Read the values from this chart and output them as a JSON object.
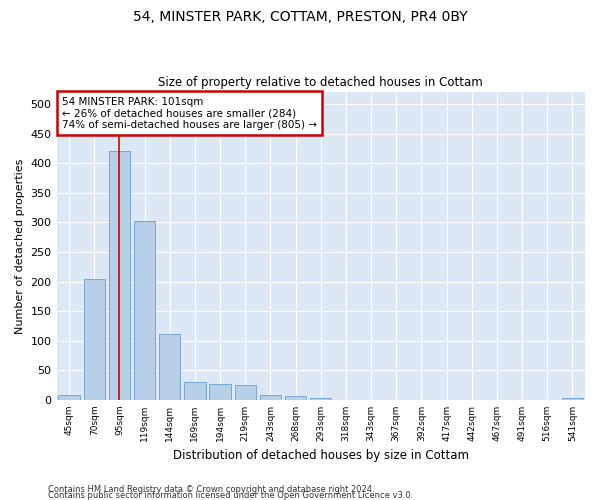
{
  "title1": "54, MINSTER PARK, COTTAM, PRESTON, PR4 0BY",
  "title2": "Size of property relative to detached houses in Cottam",
  "xlabel": "Distribution of detached houses by size in Cottam",
  "ylabel": "Number of detached properties",
  "footer1": "Contains HM Land Registry data © Crown copyright and database right 2024.",
  "footer2": "Contains public sector information licensed under the Open Government Licence v3.0.",
  "bar_color": "#b8cfe8",
  "bar_edge_color": "#6a9fd0",
  "categories": [
    "45sqm",
    "70sqm",
    "95sqm",
    "119sqm",
    "144sqm",
    "169sqm",
    "194sqm",
    "219sqm",
    "243sqm",
    "268sqm",
    "293sqm",
    "318sqm",
    "343sqm",
    "367sqm",
    "392sqm",
    "417sqm",
    "442sqm",
    "467sqm",
    "491sqm",
    "516sqm",
    "541sqm"
  ],
  "values": [
    8,
    205,
    420,
    302,
    112,
    30,
    27,
    25,
    8,
    7,
    3,
    0,
    0,
    0,
    0,
    0,
    0,
    0,
    0,
    0,
    4
  ],
  "ylim": [
    0,
    520
  ],
  "yticks": [
    0,
    50,
    100,
    150,
    200,
    250,
    300,
    350,
    400,
    450,
    500
  ],
  "redline_x": 2.0,
  "annotation_line1": "54 MINSTER PARK: 101sqm",
  "annotation_line2": "← 26% of detached houses are smaller (284)",
  "annotation_line3": "74% of semi-detached houses are larger (805) →",
  "annotation_box_color": "#ffffff",
  "annotation_box_edge": "#cc0000",
  "background_color": "#dce8f5",
  "plot_background": "#dce8f5",
  "fig_width": 6.0,
  "fig_height": 5.0,
  "fig_dpi": 100
}
